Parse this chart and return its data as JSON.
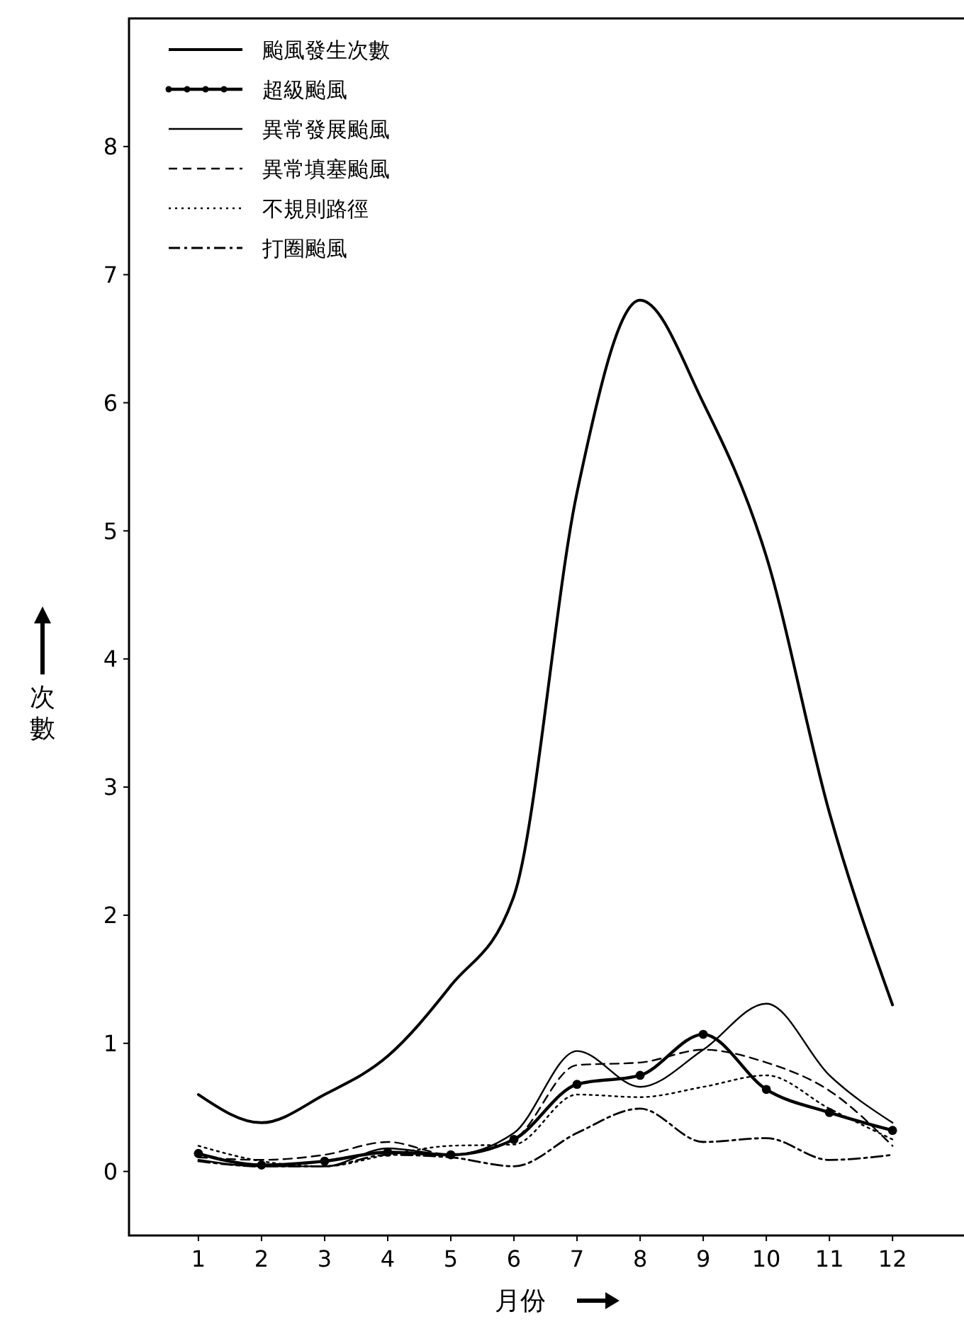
{
  "chart_data": {
    "type": "line",
    "xlabel": "月份",
    "ylabel": "次數",
    "x": [
      1,
      2,
      3,
      4,
      5,
      6,
      7,
      8,
      9,
      10,
      11,
      12
    ],
    "xlim": [
      -0.1,
      13.2
    ],
    "ylim": [
      -0.5,
      9
    ],
    "xticks": [
      1,
      2,
      3,
      4,
      5,
      6,
      7,
      8,
      9,
      10,
      11,
      12
    ],
    "yticks": [
      0,
      1,
      2,
      3,
      4,
      5,
      6,
      7,
      8
    ],
    "grid": false,
    "legend": "top left",
    "series": [
      {
        "name": "颱風發生次數",
        "color": "#000000",
        "line_style": "solid",
        "marker": "none",
        "values": [
          0.6,
          0.38,
          0.6,
          0.9,
          1.45,
          2.15,
          5.3,
          6.8,
          6.0,
          4.8,
          2.8,
          1.3
        ]
      },
      {
        "name": "超級颱風",
        "color": "#000000",
        "line_style": "solid",
        "marker": "circle",
        "values": [
          0.14,
          0.05,
          0.08,
          0.15,
          0.13,
          0.25,
          0.68,
          0.75,
          1.07,
          0.64,
          0.46,
          0.32
        ]
      },
      {
        "name": "異常發展颱風",
        "color": "#000000",
        "line_style": "solid",
        "marker": "none",
        "values": [
          0.09,
          0.04,
          0.04,
          0.18,
          0.13,
          0.3,
          0.94,
          0.66,
          0.95,
          1.31,
          0.75,
          0.38
        ]
      },
      {
        "name": "異常填塞颱風",
        "color": "#000000",
        "line_style": "dashed",
        "marker": "none",
        "values": [
          0.11,
          0.09,
          0.13,
          0.23,
          0.13,
          0.25,
          0.83,
          0.85,
          0.95,
          0.85,
          0.63,
          0.2
        ]
      },
      {
        "name": "不規則路徑",
        "color": "#000000",
        "line_style": "dotted",
        "marker": "none",
        "values": [
          0.2,
          0.08,
          0.04,
          0.13,
          0.2,
          0.21,
          0.6,
          0.58,
          0.66,
          0.75,
          0.49,
          0.25
        ]
      },
      {
        "name": "打圈颱風",
        "color": "#000000",
        "line_style": "dashdot",
        "marker": "none",
        "values": [
          0.08,
          0.04,
          0.04,
          0.13,
          0.11,
          0.04,
          0.3,
          0.49,
          0.23,
          0.26,
          0.09,
          0.13
        ]
      }
    ]
  }
}
